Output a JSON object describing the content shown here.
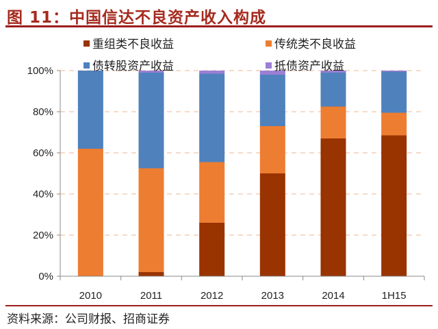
{
  "title": "图 11：中国信达不良资产收入构成",
  "source": "资料来源：公司财报、招商证券",
  "chart_data": {
    "type": "bar",
    "stacked": true,
    "categories": [
      "2010",
      "2011",
      "2012",
      "2013",
      "2014",
      "1H15"
    ],
    "series": [
      {
        "name": "重组类不良收益",
        "color": "#993300",
        "values": [
          0,
          2,
          26,
          50,
          67,
          68.5
        ]
      },
      {
        "name": "传统类不良收益",
        "color": "#ed7d31",
        "values": [
          62,
          50.5,
          29.5,
          23,
          15.5,
          11
        ]
      },
      {
        "name": "债转股资产收益",
        "color": "#4f81bd",
        "values": [
          38,
          46.5,
          43,
          25,
          16.5,
          20
        ]
      },
      {
        "name": "抵债资产收益",
        "color": "#9b7fd4",
        "values": [
          0,
          1,
          1.5,
          2,
          1,
          0.5
        ]
      }
    ],
    "ylim": [
      0,
      100
    ],
    "yticks": [
      "0%",
      "20%",
      "40%",
      "60%",
      "80%",
      "100%"
    ],
    "grid": true,
    "legend_position": "top"
  }
}
